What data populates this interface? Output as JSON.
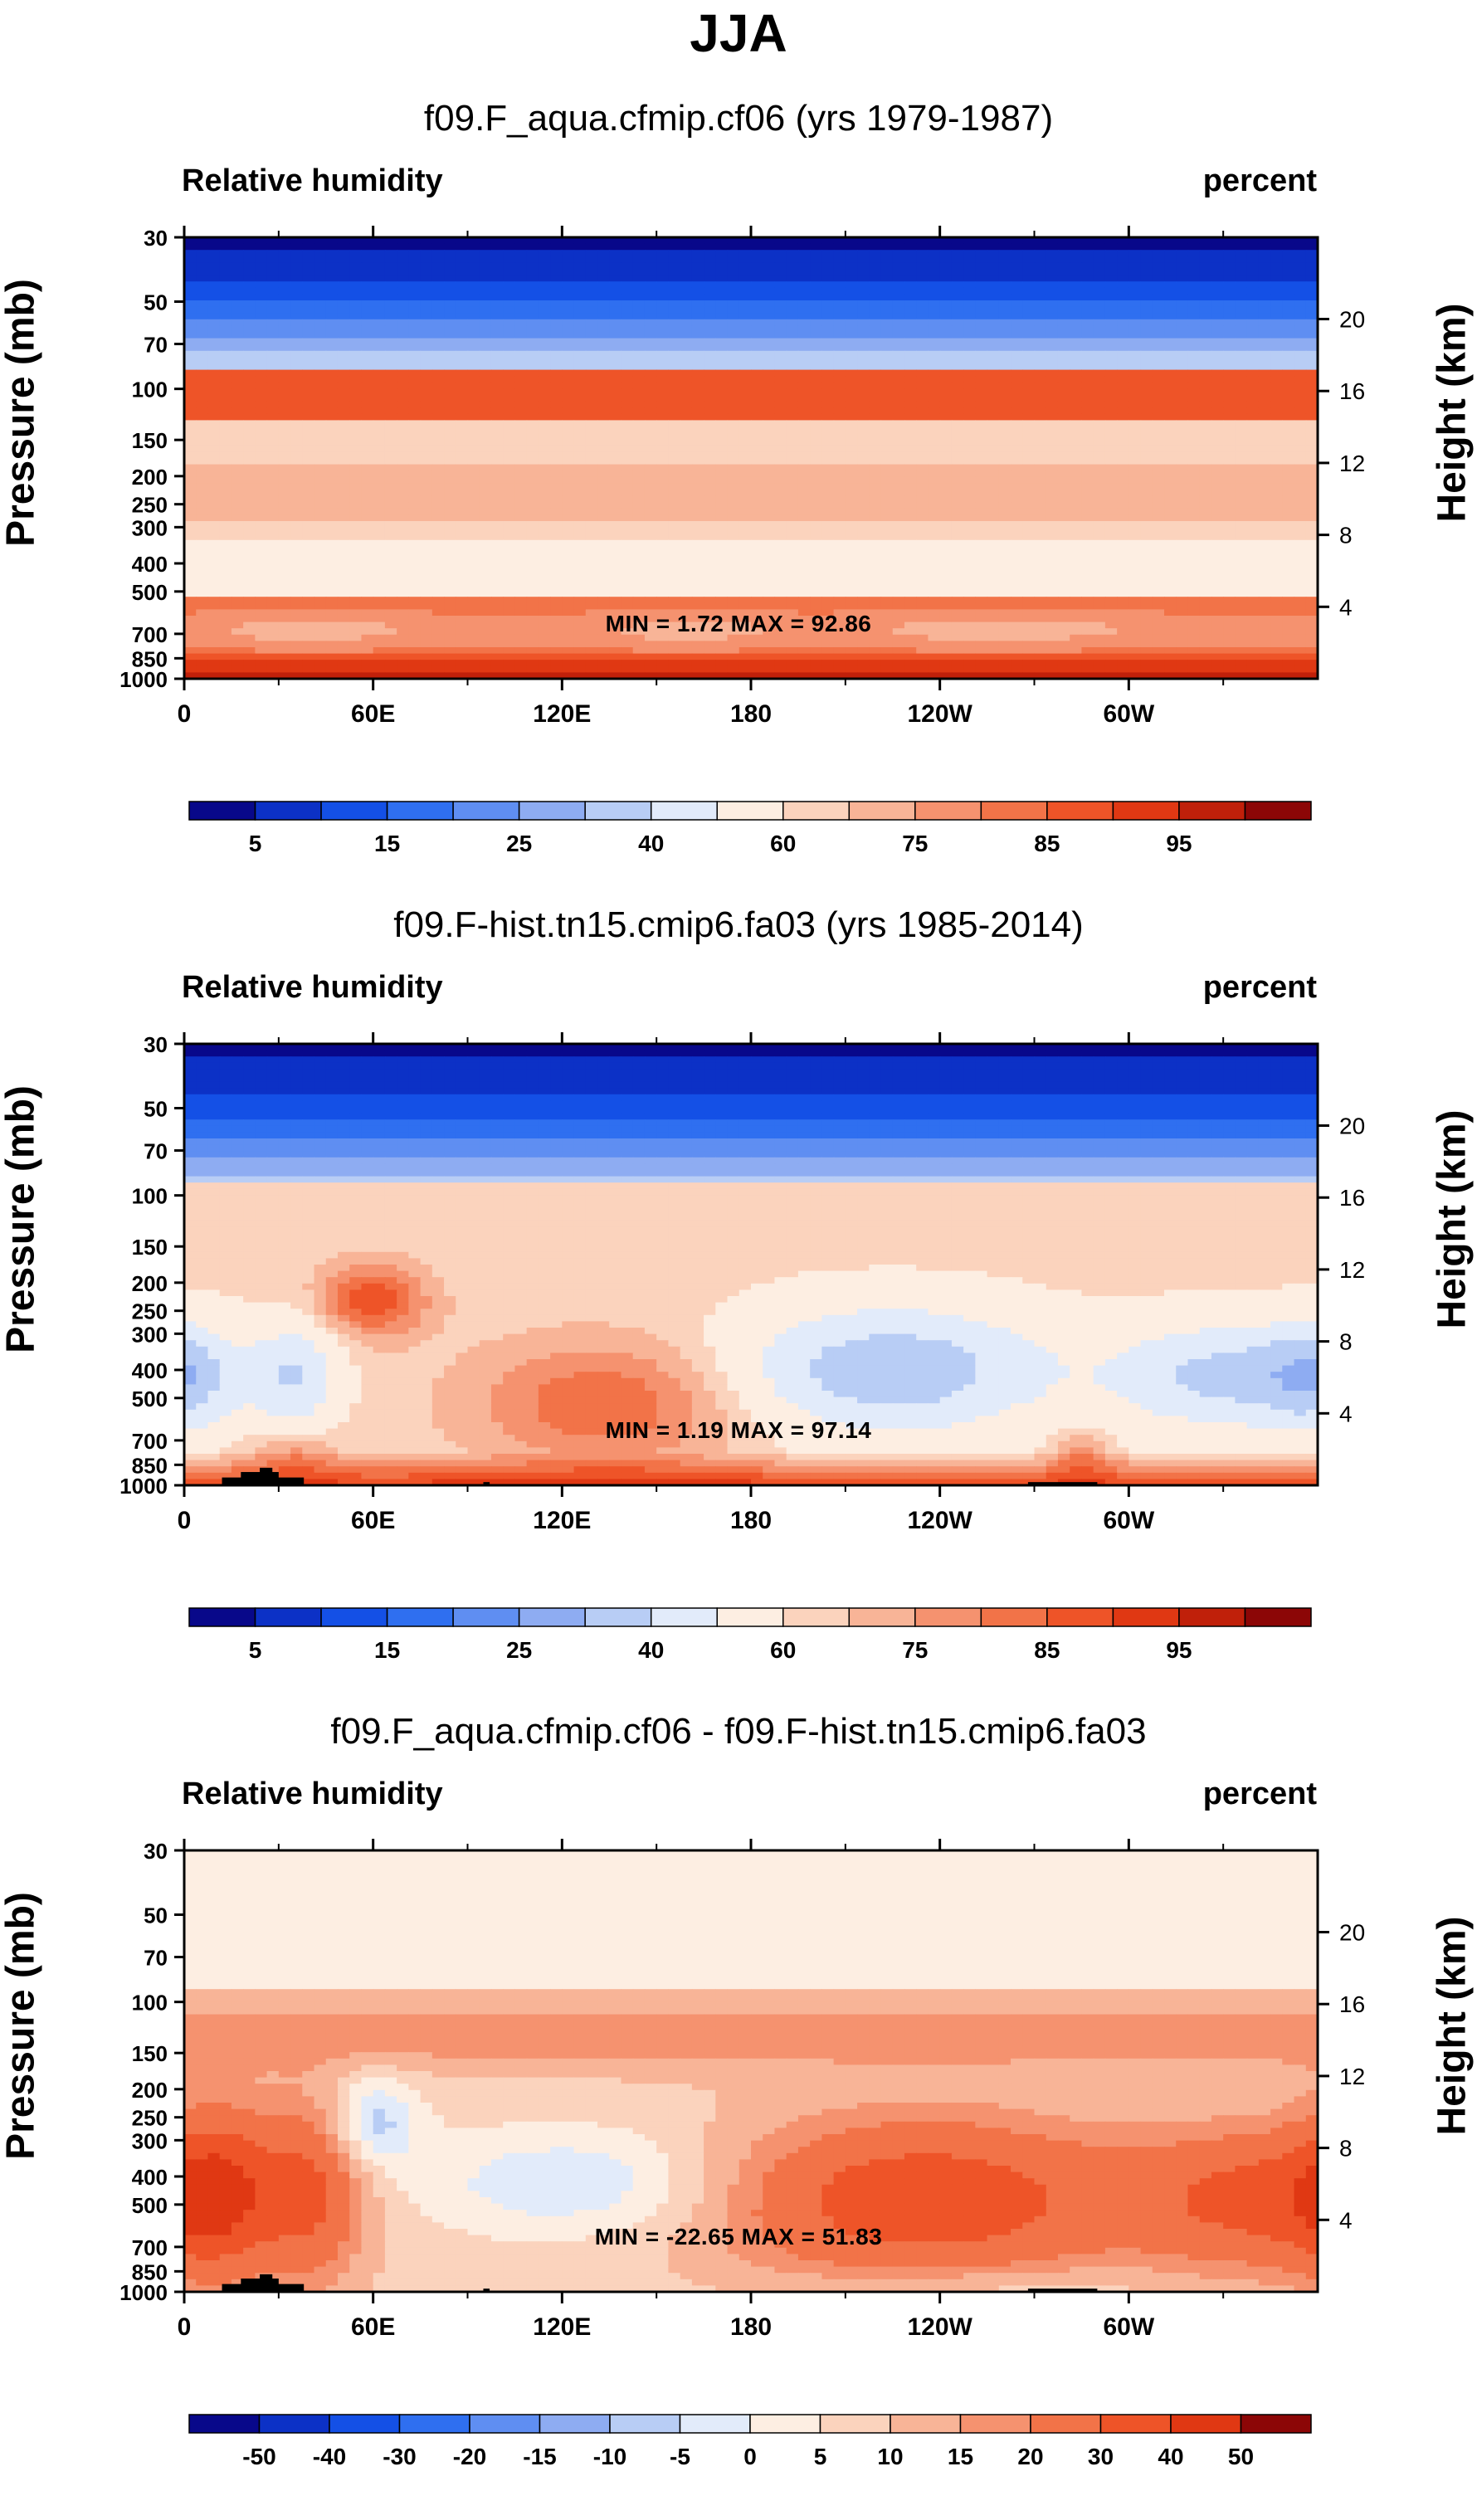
{
  "title": "JJA",
  "panel_common": {
    "variable_label": "Relative humidity",
    "units_label": "percent",
    "left_axis_title": "Pressure (mb)",
    "right_axis_title": "Height (km)",
    "pressure_ticks": [
      "30",
      "50",
      "70",
      "100",
      "150",
      "200",
      "250",
      "300",
      "400",
      "500",
      "700",
      "850",
      "1000"
    ],
    "pressure_values": [
      30,
      50,
      70,
      100,
      150,
      200,
      250,
      300,
      400,
      500,
      700,
      850,
      1000
    ],
    "height_ticks": [
      "20",
      "16",
      "12",
      "8",
      "4"
    ],
    "height_values": [
      20,
      16,
      12,
      8,
      4
    ],
    "lon_ticks": [
      "0",
      "60E",
      "120E",
      "180",
      "120W",
      "60W"
    ],
    "lon_values": [
      0,
      60,
      120,
      180,
      240,
      300
    ]
  },
  "chart_data": [
    {
      "type": "heatmap",
      "title": "f09.F_aqua.cfmip.cf06 (yrs 1979-1987)",
      "minmax": "MIN =   1.72  MAX =  92.86",
      "min": 1.72,
      "max": 92.86,
      "xlabel": "",
      "ylabel": "Pressure (mb)",
      "xlim": [
        0,
        360
      ],
      "ylim": [
        1000,
        30
      ],
      "colorbar_labels": [
        "5",
        "15",
        "25",
        "40",
        "60",
        "75",
        "85",
        "95"
      ],
      "colorbar_colors": [
        "#08088a",
        "#0c31c6",
        "#1450e6",
        "#2f6ff0",
        "#5f8ef2",
        "#8eacf2",
        "#b8cdf5",
        "#e2ebfa",
        "#fdeee2",
        "#fbd3bd",
        "#f8b497",
        "#f5926f",
        "#f27348",
        "#ee5428",
        "#e03813",
        "#c0200a",
        "#8c0606"
      ]
    },
    {
      "type": "heatmap",
      "title": "f09.F-hist.tn15.cmip6.fa03 (yrs 1985-2014)",
      "minmax": "MIN =   1.19  MAX =  97.14",
      "min": 1.19,
      "max": 97.14,
      "xlabel": "",
      "ylabel": "Pressure (mb)",
      "xlim": [
        0,
        360
      ],
      "ylim": [
        1000,
        30
      ],
      "colorbar_labels": [
        "5",
        "15",
        "25",
        "40",
        "60",
        "75",
        "85",
        "95"
      ],
      "colorbar_colors": [
        "#08088a",
        "#0c31c6",
        "#1450e6",
        "#2f6ff0",
        "#5f8ef2",
        "#8eacf2",
        "#b8cdf5",
        "#e2ebfa",
        "#fdeee2",
        "#fbd3bd",
        "#f8b497",
        "#f5926f",
        "#f27348",
        "#ee5428",
        "#e03813",
        "#c0200a",
        "#8c0606"
      ]
    },
    {
      "type": "heatmap",
      "title": "f09.F_aqua.cfmip.cf06 - f09.F-hist.tn15.cmip6.fa03",
      "minmax": "MIN = -22.65  MAX =  51.83",
      "min": -22.65,
      "max": 51.83,
      "xlabel": "",
      "ylabel": "Pressure (mb)",
      "xlim": [
        0,
        360
      ],
      "ylim": [
        1000,
        30
      ],
      "colorbar_labels": [
        "-50",
        "-40",
        "-30",
        "-20",
        "-15",
        "-10",
        "-5",
        "0",
        "5",
        "10",
        "15",
        "20",
        "30",
        "40",
        "50"
      ],
      "colorbar_colors": [
        "#08088a",
        "#0c31c6",
        "#1450e6",
        "#2f6ff0",
        "#5f8ef2",
        "#8eacf2",
        "#b8cdf5",
        "#e2ebfa",
        "#fdeee2",
        "#fbd3bd",
        "#f8b497",
        "#f5926f",
        "#f27348",
        "#ee5428",
        "#e03813",
        "#8c0606"
      ]
    }
  ]
}
